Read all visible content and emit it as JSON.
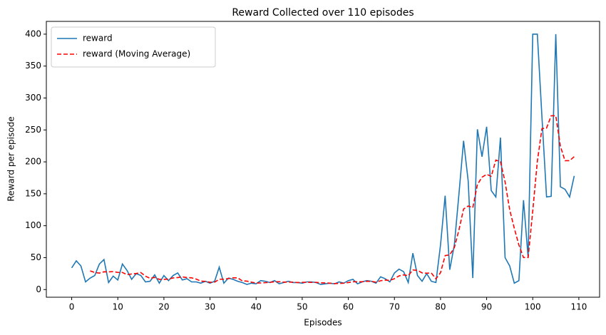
{
  "chart_data": {
    "type": "line",
    "title": "Reward Collected over 110 episodes",
    "xlabel": "Episodes",
    "ylabel": "Reward per episode",
    "x": [
      0,
      1,
      2,
      3,
      4,
      5,
      6,
      7,
      8,
      9,
      10,
      11,
      12,
      13,
      14,
      15,
      16,
      17,
      18,
      19,
      20,
      21,
      22,
      23,
      24,
      25,
      26,
      27,
      28,
      29,
      30,
      31,
      32,
      33,
      34,
      35,
      36,
      37,
      38,
      39,
      40,
      41,
      42,
      43,
      44,
      45,
      46,
      47,
      48,
      49,
      50,
      51,
      52,
      53,
      54,
      55,
      56,
      57,
      58,
      59,
      60,
      61,
      62,
      63,
      64,
      65,
      66,
      67,
      68,
      69,
      70,
      71,
      72,
      73,
      74,
      75,
      76,
      77,
      78,
      79,
      80,
      81,
      82,
      83,
      84,
      85,
      86,
      87,
      88,
      89,
      90,
      91,
      92,
      93,
      94,
      95,
      96,
      97,
      98,
      99,
      100,
      101,
      102,
      103,
      104,
      105,
      106,
      107,
      108,
      109
    ],
    "series": [
      {
        "name": "reward",
        "color": "#1f77b4",
        "linestyle": "solid",
        "values": [
          34,
          45,
          37,
          12,
          18,
          22,
          40,
          47,
          11,
          21,
          15,
          40,
          30,
          16,
          25,
          22,
          12,
          13,
          23,
          10,
          22,
          14,
          22,
          26,
          15,
          17,
          12,
          12,
          10,
          13,
          10,
          13,
          35,
          10,
          18,
          16,
          13,
          11,
          8,
          10,
          9,
          14,
          13,
          11,
          14,
          9,
          11,
          13,
          11,
          11,
          10,
          12,
          12,
          11,
          8,
          9,
          10,
          9,
          12,
          10,
          14,
          16,
          9,
          12,
          14,
          13,
          10,
          20,
          17,
          12,
          26,
          32,
          28,
          11,
          57,
          22,
          13,
          25,
          13,
          11,
          70,
          147,
          31,
          70,
          150,
          233,
          170,
          18,
          251,
          208,
          255,
          155,
          145,
          238,
          50,
          37,
          10,
          14,
          140,
          50,
          400,
          400,
          270,
          145,
          146,
          400,
          161,
          157,
          145,
          178
        ]
      },
      {
        "name": "reward (Moving Average)",
        "color": "#ff0000",
        "linestyle": "dashed",
        "values": [
          null,
          null,
          null,
          null,
          29.2,
          26.8,
          25.8,
          27.8,
          27.6,
          28.2,
          26.8,
          26.8,
          23.4,
          24.4,
          25.2,
          26.6,
          21,
          17.6,
          19,
          16,
          16,
          16.4,
          18.2,
          18.8,
          19.8,
          18.8,
          18.4,
          16.4,
          13.2,
          12.8,
          11.4,
          11.6,
          16.2,
          16.2,
          17.2,
          18.4,
          18.4,
          13.6,
          13.2,
          11.6,
          10.2,
          10.4,
          10.8,
          11.4,
          12.2,
          12.2,
          11.6,
          11.6,
          11.6,
          11,
          11.2,
          11.4,
          11.2,
          11.2,
          10.6,
          10.4,
          10,
          9.4,
          9.6,
          10,
          11,
          12.2,
          12.2,
          12.2,
          13,
          12.8,
          11.6,
          13.8,
          14.8,
          14.4,
          17,
          21.4,
          23,
          21.8,
          30.8,
          30,
          26.2,
          25.6,
          26,
          16.8,
          26.4,
          53.2,
          54.4,
          65.8,
          93.6,
          126.2,
          130.8,
          128.2,
          164.4,
          176,
          180.4,
          177.4,
          202.8,
          200.2,
          168.6,
          125,
          96,
          69.8,
          50.2,
          50.2,
          122.8,
          200.8,
          252,
          253,
          272.2,
          272.2,
          224.4,
          201.8,
          201.8,
          208.2
        ]
      }
    ],
    "xlim": [
      -5.5,
      114.5
    ],
    "ylim": [
      -12,
      420
    ],
    "xticks": [
      0,
      10,
      20,
      30,
      40,
      50,
      60,
      70,
      80,
      90,
      100,
      110
    ],
    "yticks": [
      0,
      50,
      100,
      150,
      200,
      250,
      300,
      350,
      400
    ],
    "legend": "upper left",
    "grid": false
  }
}
